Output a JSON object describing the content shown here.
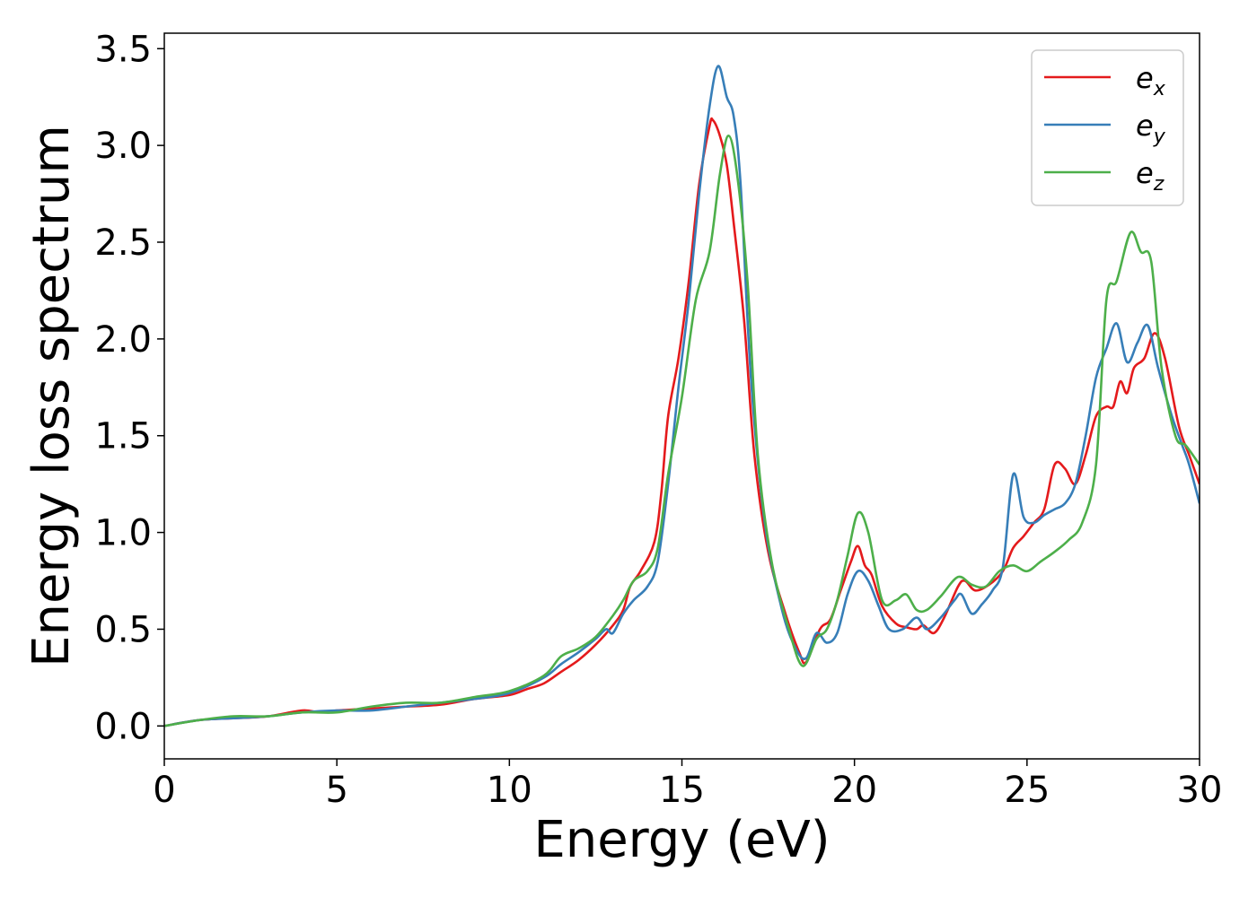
{
  "chart_data": {
    "type": "line",
    "title": "",
    "xlabel": "Energy (eV)",
    "ylabel": "Energy loss spectrum",
    "xlim": [
      0,
      30
    ],
    "ylim": [
      -0.17,
      3.58
    ],
    "x_ticks": [
      "0",
      "5",
      "10",
      "15",
      "20",
      "25",
      "30"
    ],
    "y_ticks": [
      "0.0",
      "0.5",
      "1.0",
      "1.5",
      "2.0",
      "2.5",
      "3.0",
      "3.5"
    ],
    "grid": false,
    "legend_position": "top-right",
    "series": [
      {
        "name": "e",
        "subscript": "x",
        "color": "#e41a1c",
        "points": [
          [
            0,
            0
          ],
          [
            1,
            0.03
          ],
          [
            2,
            0.04
          ],
          [
            3,
            0.05
          ],
          [
            4,
            0.08
          ],
          [
            4.5,
            0.07
          ],
          [
            5,
            0.08
          ],
          [
            6,
            0.09
          ],
          [
            7,
            0.1
          ],
          [
            8,
            0.11
          ],
          [
            9,
            0.14
          ],
          [
            10,
            0.16
          ],
          [
            10.5,
            0.19
          ],
          [
            11,
            0.22
          ],
          [
            11.5,
            0.28
          ],
          [
            12,
            0.34
          ],
          [
            12.5,
            0.42
          ],
          [
            13,
            0.52
          ],
          [
            13.3,
            0.6
          ],
          [
            13.5,
            0.72
          ],
          [
            13.8,
            0.8
          ],
          [
            14.2,
            0.95
          ],
          [
            14.4,
            1.2
          ],
          [
            14.6,
            1.6
          ],
          [
            14.9,
            1.9
          ],
          [
            15.2,
            2.3
          ],
          [
            15.5,
            2.8
          ],
          [
            15.8,
            3.1
          ],
          [
            15.9,
            3.13
          ],
          [
            16.1,
            3.05
          ],
          [
            16.3,
            2.9
          ],
          [
            16.5,
            2.6
          ],
          [
            16.8,
            2.1
          ],
          [
            17.1,
            1.4
          ],
          [
            17.5,
            0.9
          ],
          [
            18,
            0.58
          ],
          [
            18.4,
            0.38
          ],
          [
            18.6,
            0.33
          ],
          [
            19,
            0.5
          ],
          [
            19.3,
            0.55
          ],
          [
            19.6,
            0.7
          ],
          [
            19.9,
            0.85
          ],
          [
            20.1,
            0.93
          ],
          [
            20.3,
            0.83
          ],
          [
            20.5,
            0.78
          ],
          [
            20.8,
            0.62
          ],
          [
            21.2,
            0.53
          ],
          [
            21.5,
            0.51
          ],
          [
            21.8,
            0.5
          ],
          [
            22,
            0.52
          ],
          [
            22.3,
            0.48
          ],
          [
            22.6,
            0.56
          ],
          [
            23,
            0.72
          ],
          [
            23.2,
            0.75
          ],
          [
            23.5,
            0.7
          ],
          [
            23.9,
            0.73
          ],
          [
            24.3,
            0.8
          ],
          [
            24.6,
            0.92
          ],
          [
            24.9,
            0.98
          ],
          [
            25.2,
            1.05
          ],
          [
            25.5,
            1.12
          ],
          [
            25.8,
            1.35
          ],
          [
            26.1,
            1.33
          ],
          [
            26.4,
            1.25
          ],
          [
            26.7,
            1.4
          ],
          [
            27,
            1.6
          ],
          [
            27.3,
            1.65
          ],
          [
            27.5,
            1.65
          ],
          [
            27.7,
            1.78
          ],
          [
            27.9,
            1.72
          ],
          [
            28.1,
            1.85
          ],
          [
            28.4,
            1.9
          ],
          [
            28.7,
            2.03
          ],
          [
            29,
            1.9
          ],
          [
            29.4,
            1.55
          ],
          [
            29.7,
            1.4
          ],
          [
            30,
            1.25
          ]
        ]
      },
      {
        "name": "e",
        "subscript": "y",
        "color": "#377eb8",
        "points": [
          [
            0,
            0
          ],
          [
            1,
            0.03
          ],
          [
            2,
            0.04
          ],
          [
            3,
            0.05
          ],
          [
            4,
            0.07
          ],
          [
            5,
            0.08
          ],
          [
            6,
            0.08
          ],
          [
            7,
            0.1
          ],
          [
            8,
            0.12
          ],
          [
            9,
            0.14
          ],
          [
            10,
            0.17
          ],
          [
            11,
            0.25
          ],
          [
            11.5,
            0.32
          ],
          [
            12,
            0.38
          ],
          [
            12.5,
            0.45
          ],
          [
            12.8,
            0.5
          ],
          [
            13,
            0.48
          ],
          [
            13.3,
            0.58
          ],
          [
            13.6,
            0.65
          ],
          [
            14,
            0.72
          ],
          [
            14.3,
            0.85
          ],
          [
            14.6,
            1.25
          ],
          [
            14.9,
            1.75
          ],
          [
            15.2,
            2.2
          ],
          [
            15.5,
            2.75
          ],
          [
            15.8,
            3.2
          ],
          [
            16.05,
            3.41
          ],
          [
            16.3,
            3.25
          ],
          [
            16.5,
            3.15
          ],
          [
            16.7,
            2.8
          ],
          [
            17,
            1.8
          ],
          [
            17.4,
            1.05
          ],
          [
            17.9,
            0.6
          ],
          [
            18.3,
            0.4
          ],
          [
            18.6,
            0.35
          ],
          [
            18.9,
            0.48
          ],
          [
            19.2,
            0.43
          ],
          [
            19.5,
            0.48
          ],
          [
            19.8,
            0.68
          ],
          [
            20.1,
            0.8
          ],
          [
            20.4,
            0.75
          ],
          [
            20.7,
            0.62
          ],
          [
            21,
            0.5
          ],
          [
            21.4,
            0.5
          ],
          [
            21.8,
            0.56
          ],
          [
            22.1,
            0.5
          ],
          [
            22.5,
            0.56
          ],
          [
            22.9,
            0.65
          ],
          [
            23.1,
            0.68
          ],
          [
            23.4,
            0.58
          ],
          [
            23.7,
            0.63
          ],
          [
            24,
            0.7
          ],
          [
            24.3,
            0.82
          ],
          [
            24.6,
            1.3
          ],
          [
            24.9,
            1.08
          ],
          [
            25.2,
            1.05
          ],
          [
            25.5,
            1.09
          ],
          [
            25.8,
            1.12
          ],
          [
            26.1,
            1.15
          ],
          [
            26.4,
            1.25
          ],
          [
            26.7,
            1.5
          ],
          [
            27,
            1.8
          ],
          [
            27.3,
            1.95
          ],
          [
            27.6,
            2.08
          ],
          [
            27.9,
            1.88
          ],
          [
            28.2,
            1.98
          ],
          [
            28.5,
            2.07
          ],
          [
            28.8,
            1.85
          ],
          [
            29.2,
            1.6
          ],
          [
            29.5,
            1.45
          ],
          [
            29.7,
            1.35
          ],
          [
            30,
            1.15
          ]
        ]
      },
      {
        "name": "e",
        "subscript": "z",
        "color": "#4daf4a",
        "points": [
          [
            0,
            0
          ],
          [
            1,
            0.03
          ],
          [
            2,
            0.05
          ],
          [
            3,
            0.05
          ],
          [
            4,
            0.07
          ],
          [
            5,
            0.07
          ],
          [
            6,
            0.1
          ],
          [
            7,
            0.12
          ],
          [
            8,
            0.12
          ],
          [
            9,
            0.15
          ],
          [
            10,
            0.18
          ],
          [
            11,
            0.26
          ],
          [
            11.5,
            0.36
          ],
          [
            12,
            0.4
          ],
          [
            12.5,
            0.46
          ],
          [
            13,
            0.57
          ],
          [
            13.3,
            0.65
          ],
          [
            13.6,
            0.75
          ],
          [
            14,
            0.8
          ],
          [
            14.3,
            0.92
          ],
          [
            14.6,
            1.3
          ],
          [
            15,
            1.7
          ],
          [
            15.4,
            2.2
          ],
          [
            15.8,
            2.45
          ],
          [
            16.1,
            2.85
          ],
          [
            16.35,
            3.05
          ],
          [
            16.6,
            2.85
          ],
          [
            16.9,
            2.3
          ],
          [
            17.2,
            1.4
          ],
          [
            17.6,
            0.85
          ],
          [
            18.1,
            0.5
          ],
          [
            18.5,
            0.31
          ],
          [
            18.9,
            0.45
          ],
          [
            19.2,
            0.5
          ],
          [
            19.5,
            0.65
          ],
          [
            19.8,
            0.88
          ],
          [
            20.1,
            1.1
          ],
          [
            20.4,
            1.0
          ],
          [
            20.8,
            0.65
          ],
          [
            21.2,
            0.65
          ],
          [
            21.5,
            0.68
          ],
          [
            21.8,
            0.6
          ],
          [
            22.1,
            0.6
          ],
          [
            22.5,
            0.67
          ],
          [
            23,
            0.77
          ],
          [
            23.4,
            0.73
          ],
          [
            23.8,
            0.72
          ],
          [
            24.2,
            0.8
          ],
          [
            24.6,
            0.83
          ],
          [
            25,
            0.8
          ],
          [
            25.4,
            0.85
          ],
          [
            25.8,
            0.9
          ],
          [
            26.2,
            0.96
          ],
          [
            26.6,
            1.05
          ],
          [
            27,
            1.35
          ],
          [
            27.3,
            2.2
          ],
          [
            27.6,
            2.3
          ],
          [
            28,
            2.55
          ],
          [
            28.3,
            2.45
          ],
          [
            28.6,
            2.4
          ],
          [
            28.9,
            1.85
          ],
          [
            29.3,
            1.5
          ],
          [
            29.6,
            1.45
          ],
          [
            30,
            1.35
          ]
        ]
      }
    ]
  }
}
